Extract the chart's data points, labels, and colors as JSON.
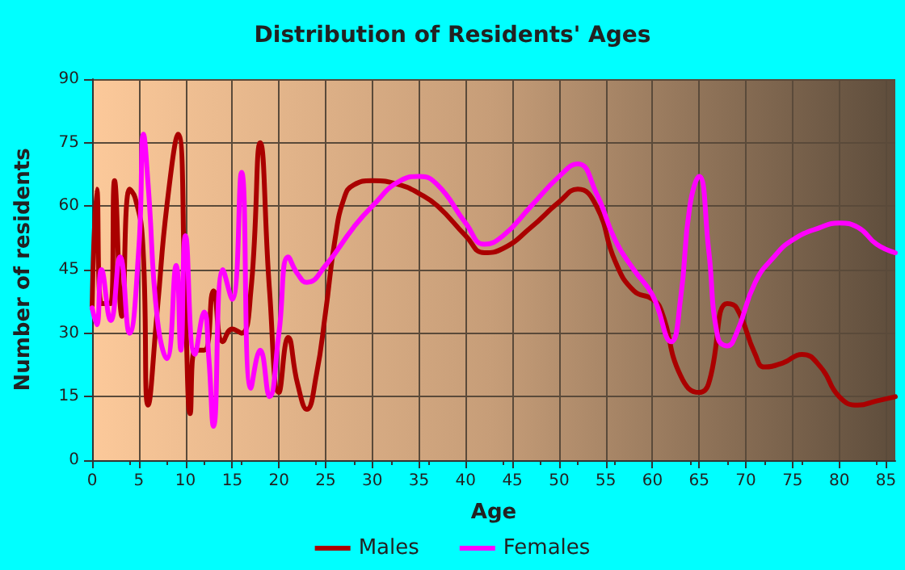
{
  "chart_data": {
    "type": "line",
    "title": "Distribution of Residents' Ages",
    "xlabel": "Age",
    "ylabel": "Number of residents",
    "xlim": [
      0,
      86
    ],
    "xticks": [
      0,
      5,
      10,
      15,
      20,
      25,
      30,
      35,
      40,
      45,
      50,
      55,
      60,
      65,
      70,
      75,
      80,
      85
    ],
    "ylim": [
      0,
      90
    ],
    "yticks": [
      0,
      15,
      30,
      45,
      60,
      75,
      90
    ],
    "grid": true,
    "legend": "bottom",
    "marker": "none",
    "line_style": "solid",
    "series": [
      {
        "name": "Males",
        "color": "#aa0000",
        "x": [
          0,
          0.5,
          1,
          2,
          2.4,
          3.2,
          4,
          4.6,
          5.4,
          6,
          7,
          8,
          9.2,
          10,
          10.5,
          11,
          12,
          13,
          14,
          15,
          16,
          17,
          18,
          19,
          20,
          21,
          22,
          23,
          24,
          25,
          26,
          27,
          28,
          30,
          33,
          35,
          37,
          40,
          42,
          44,
          47,
          50,
          52,
          54,
          56,
          58,
          60,
          61,
          63,
          65,
          66,
          68,
          69,
          71,
          72,
          74,
          76,
          78,
          80,
          82,
          84,
          86
        ],
        "values": [
          36,
          64,
          37,
          37,
          66,
          34,
          64,
          62,
          52,
          13,
          36,
          60,
          77,
          35,
          11,
          26,
          26,
          40,
          28,
          31,
          30,
          40,
          75,
          40,
          16,
          29,
          18,
          12,
          20,
          35,
          52,
          62,
          65,
          66,
          65,
          63,
          60,
          53,
          49,
          50,
          55,
          61,
          64,
          60,
          47,
          40,
          38,
          35,
          20,
          16,
          18,
          37,
          36,
          25,
          22,
          23,
          25,
          22,
          15,
          13,
          14,
          15
        ]
      },
      {
        "name": "Females",
        "color": "#ff00ff",
        "x": [
          0,
          0.5,
          1,
          2,
          3,
          4,
          5,
          5.5,
          6,
          7,
          8,
          9,
          9.5,
          10,
          11,
          12,
          12.5,
          13,
          14,
          15,
          16,
          17,
          18,
          19,
          20,
          21,
          22,
          23,
          25,
          28,
          30,
          33,
          35,
          37,
          40,
          42,
          44,
          47,
          50,
          52,
          54,
          56,
          58,
          60,
          62,
          63,
          64,
          65,
          66,
          67,
          68,
          69,
          71,
          73,
          75,
          78,
          80,
          82,
          84,
          86
        ],
        "values": [
          36,
          32,
          45,
          33,
          48,
          30,
          50,
          77,
          65,
          33,
          24,
          46,
          26,
          53,
          25,
          35,
          24,
          8,
          45,
          38,
          68,
          17,
          26,
          15,
          30,
          48,
          44,
          42,
          46,
          55,
          60,
          66,
          67,
          65,
          56,
          51,
          53,
          60,
          67,
          70,
          63,
          52,
          45,
          39,
          28,
          38,
          60,
          67,
          50,
          29,
          27,
          30,
          42,
          48,
          52,
          55,
          56,
          55,
          51,
          49
        ]
      }
    ]
  }
}
